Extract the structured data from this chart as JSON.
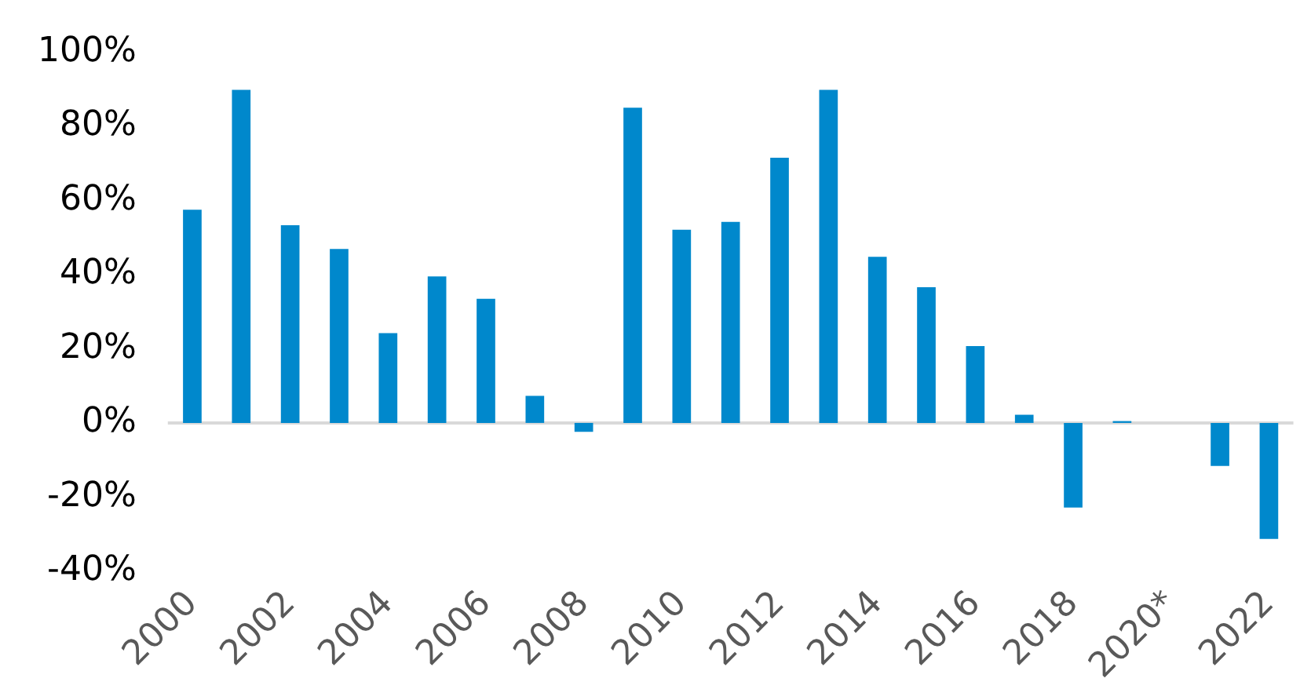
{
  "chart_data": {
    "type": "bar",
    "categories": [
      "2000",
      null,
      "2002",
      null,
      "2004",
      null,
      "2006",
      null,
      "2008",
      null,
      "2010",
      null,
      "2012",
      null,
      "2014",
      null,
      "2016",
      null,
      "2018",
      null,
      "2020*",
      null,
      "2022"
    ],
    "values": [
      57.5,
      89.8,
      53.3,
      46.9,
      24.2,
      39.5,
      33.5,
      7.3,
      -2.4,
      85.0,
      52.1,
      54.2,
      71.5,
      89.8,
      44.8,
      36.6,
      20.7,
      2.2,
      -22.8,
      0.5,
      0,
      -11.6,
      -31.3
    ],
    "color": "#0088cc",
    "ylim": [
      -40,
      100
    ],
    "yticks": [
      {
        "value": -40,
        "label": "-40%"
      },
      {
        "value": -20,
        "label": "-20%"
      },
      {
        "value": 0,
        "label": "0%"
      },
      {
        "value": 20,
        "label": "20%"
      },
      {
        "value": 40,
        "label": "40%"
      },
      {
        "value": 60,
        "label": "60%"
      },
      {
        "value": 80,
        "label": "80%"
      },
      {
        "value": 100,
        "label": "100%"
      }
    ],
    "ref_lines": [
      {
        "axis": "y",
        "value": 0,
        "color": "#d9d9d9"
      }
    ],
    "grid": false,
    "legend": false
  }
}
